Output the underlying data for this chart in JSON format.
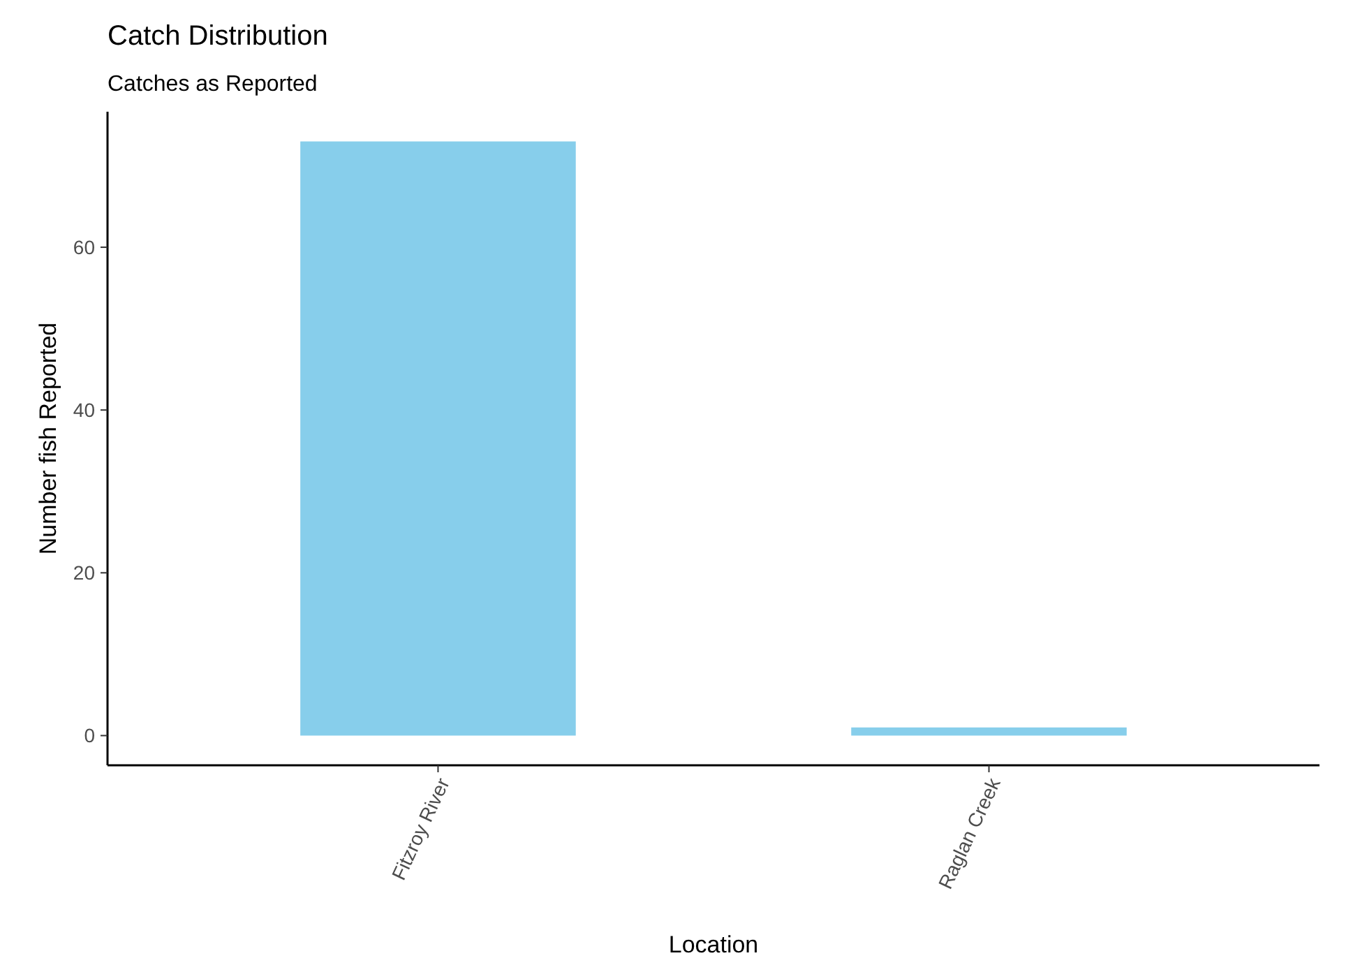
{
  "chart_data": {
    "type": "bar",
    "title": "Catch Distribution",
    "subtitle": "Catches as Reported",
    "xlabel": "Location",
    "ylabel": "Number fish Reported",
    "categories": [
      "Fitzroy River",
      "Raglan Creek"
    ],
    "values": [
      73,
      1
    ],
    "color": "#87ceeb",
    "ylim": [
      -3.65,
      76.65
    ],
    "yticks": [
      0,
      20,
      40,
      60
    ],
    "grid": false
  }
}
